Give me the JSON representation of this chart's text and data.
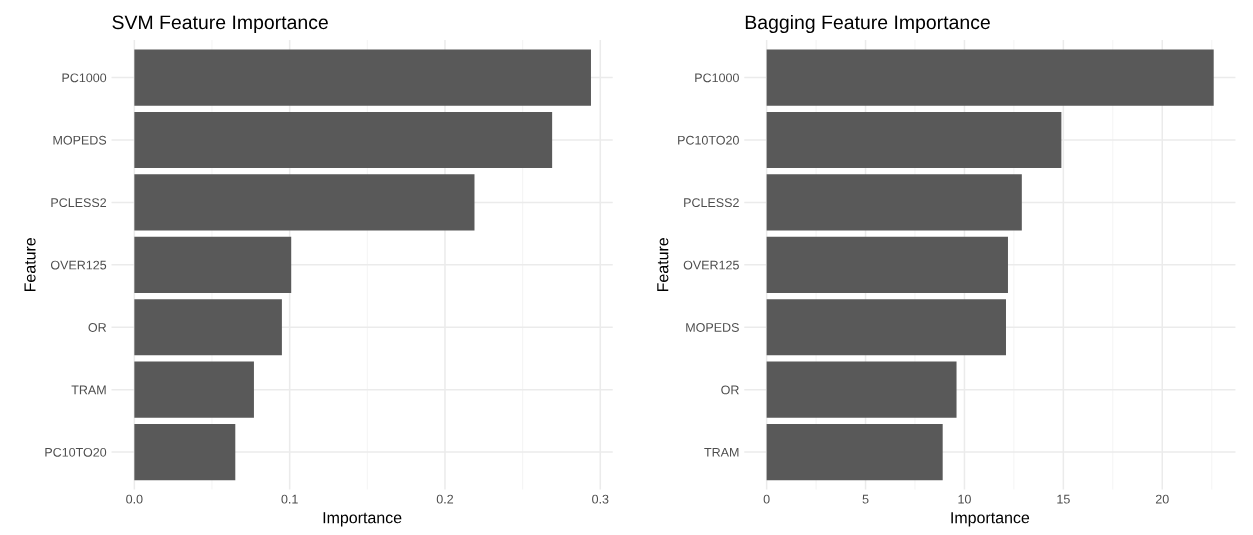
{
  "chart_data": [
    {
      "type": "bar",
      "orientation": "horizontal",
      "title": "SVM Feature Importance",
      "xlabel": "Importance",
      "ylabel": "Feature",
      "categories": [
        "PC1000",
        "MOPEDS",
        "PCLESS2",
        "OVER125",
        "OR",
        "TRAM",
        "PC10TO20"
      ],
      "values": [
        0.294,
        0.269,
        0.219,
        0.101,
        0.095,
        0.077,
        0.065
      ],
      "color": "#595959",
      "xlim": [
        -0.0147,
        0.308
      ],
      "xticks": [
        {
          "value": 0,
          "label": "0.0"
        },
        0.1,
        0.2,
        0.3
      ],
      "grid": true
    },
    {
      "type": "bar",
      "orientation": "horizontal",
      "title": "Bagging Feature Importance",
      "xlabel": "Importance",
      "ylabel": "Feature",
      "categories": [
        "PC1000",
        "PC10TO20",
        "PCLESS2",
        "OVER125",
        "MOPEDS",
        "OR",
        "TRAM"
      ],
      "values": [
        22.6,
        14.9,
        12.9,
        12.2,
        12.1,
        9.6,
        8.9
      ],
      "color": "#595959",
      "xlim": [
        -1.13,
        23.7
      ],
      "xticks": [
        0,
        5,
        10,
        15,
        20
      ],
      "grid": true
    }
  ]
}
